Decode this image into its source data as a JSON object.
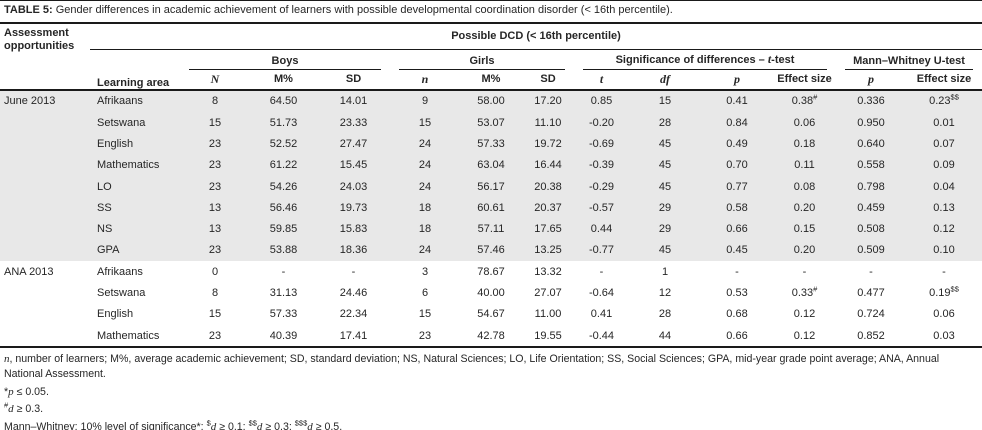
{
  "title": {
    "label": "TABLE 5:",
    "text": " Gender differences in academic achievement of learners with possible developmental coordination disorder (< 16th percentile)."
  },
  "table": {
    "corner_header": "Assessment opportunities",
    "span_header": "Possible DCD (< 16th percentile)",
    "learning_area_header": "Learning area",
    "groups": [
      {
        "label": "Boys"
      },
      {
        "label": "Girls"
      },
      {
        "label": "Significance of differences – ~{t}-test"
      },
      {
        "label": "Mann–Whitney U-test"
      }
    ],
    "subheaders": [
      {
        "label": "~{N}"
      },
      {
        "label": "M%"
      },
      {
        "label": "SD"
      },
      {
        "label": "~{n}"
      },
      {
        "label": "M%"
      },
      {
        "label": "SD"
      },
      {
        "label": "~{t}"
      },
      {
        "label": "~{df}"
      },
      {
        "label": "~{p}"
      },
      {
        "label": "Effect size"
      },
      {
        "label": "~{p}"
      },
      {
        "label": "Effect size"
      }
    ],
    "sections": [
      {
        "name": "June 2013",
        "shaded": true,
        "rows": [
          {
            "area": "Afrikaans",
            "cells": [
              "8",
              "64.50",
              "14.01",
              "9",
              "58.00",
              "17.20",
              "0.85",
              "15",
              "0.41",
              "0.38^{#}",
              "0.336",
              "0.23^{$$}"
            ]
          },
          {
            "area": "Setswana",
            "cells": [
              "15",
              "51.73",
              "23.33",
              "15",
              "53.07",
              "11.10",
              "-0.20",
              "28",
              "0.84",
              "0.06",
              "0.950",
              "0.01"
            ]
          },
          {
            "area": "English",
            "cells": [
              "23",
              "52.52",
              "27.47",
              "24",
              "57.33",
              "19.72",
              "-0.69",
              "45",
              "0.49",
              "0.18",
              "0.640",
              "0.07"
            ]
          },
          {
            "area": "Mathematics",
            "cells": [
              "23",
              "61.22",
              "15.45",
              "24",
              "63.04",
              "16.44",
              "-0.39",
              "45",
              "0.70",
              "0.11",
              "0.558",
              "0.09"
            ]
          },
          {
            "area": "LO",
            "cells": [
              "23",
              "54.26",
              "24.03",
              "24",
              "56.17",
              "20.38",
              "-0.29",
              "45",
              "0.77",
              "0.08",
              "0.798",
              "0.04"
            ]
          },
          {
            "area": "SS",
            "cells": [
              "13",
              "56.46",
              "19.73",
              "18",
              "60.61",
              "20.37",
              "-0.57",
              "29",
              "0.58",
              "0.20",
              "0.459",
              "0.13"
            ]
          },
          {
            "area": "NS",
            "cells": [
              "13",
              "59.85",
              "15.83",
              "18",
              "57.11",
              "17.65",
              "0.44",
              "29",
              "0.66",
              "0.15",
              "0.508",
              "0.12"
            ]
          },
          {
            "area": "GPA",
            "cells": [
              "23",
              "53.88",
              "18.36",
              "24",
              "57.46",
              "13.25",
              "-0.77",
              "45",
              "0.45",
              "0.20",
              "0.509",
              "0.10"
            ]
          }
        ]
      },
      {
        "name": "ANA 2013",
        "shaded": false,
        "rows": [
          {
            "area": "Afrikaans",
            "cells": [
              "0",
              "-",
              "-",
              "3",
              "78.67",
              "13.32",
              "-",
              "1",
              "-",
              "-",
              "-",
              "-"
            ]
          },
          {
            "area": "Setswana",
            "cells": [
              "8",
              "31.13",
              "24.46",
              "6",
              "40.00",
              "27.07",
              "-0.64",
              "12",
              "0.53",
              "0.33^{#}",
              "0.477",
              "0.19^{$$}"
            ]
          },
          {
            "area": "English",
            "cells": [
              "15",
              "57.33",
              "22.34",
              "15",
              "54.67",
              "11.00",
              "0.41",
              "28",
              "0.68",
              "0.12",
              "0.724",
              "0.06"
            ]
          },
          {
            "area": "Mathematics",
            "cells": [
              "23",
              "40.39",
              "17.41",
              "23",
              "42.78",
              "19.55",
              "-0.44",
              "44",
              "0.66",
              "0.12",
              "0.852",
              "0.03"
            ]
          }
        ]
      }
    ]
  },
  "footnotes": {
    "line1": "~{n}, number of learners; M%, average academic achievement; SD, standard deviation; NS, Natural Sciences; LO, Life Orientation; SS, Social Sciences; GPA, mid-year grade point average; ANA, Annual National Assessment.",
    "line2": "*~{p} ≤ 0.05.",
    "line3": "^{#}~{d} ≥ 0.3.",
    "line4": "Mann–Whitney: 10% level of significance*; ^{$}~{d} ≥ 0.1; ^{$$}~{d} ≥ 0.3; ^{$$$}~{d} ≥ 0.5."
  },
  "colors": {
    "shaded_row": "#e8e8e8",
    "rule": "#1a1a1a",
    "text": "#262626"
  }
}
